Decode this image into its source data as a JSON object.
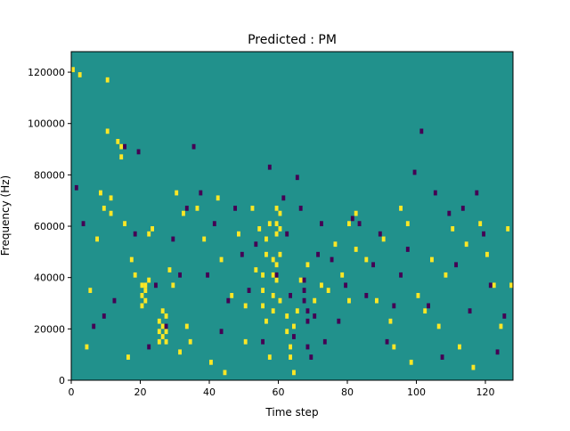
{
  "chart_data": {
    "type": "heatmap",
    "title": "Predicted : PM",
    "xlabel": "Time step",
    "ylabel": "Frequency (Hz)",
    "xlim": [
      0,
      128
    ],
    "ylim": [
      0,
      128000
    ],
    "x_ticks": [
      0,
      20,
      40,
      60,
      80,
      100,
      120
    ],
    "x_tick_labels": [
      "0",
      "20",
      "40",
      "60",
      "80",
      "100",
      "120"
    ],
    "y_ticks": [
      0,
      20000,
      40000,
      60000,
      80000,
      100000,
      120000
    ],
    "y_tick_labels": [
      "0",
      "20000",
      "40000",
      "60000",
      "80000",
      "100000",
      "120000"
    ],
    "grid": false,
    "background_value": 0,
    "colormap": {
      "-1": "#440154",
      "0": "#21918c",
      "1": "#fde725"
    },
    "cells_step_hz": 2000,
    "cells_high": [
      [
        0,
        120000
      ],
      [
        2,
        118000
      ],
      [
        4,
        12000
      ],
      [
        5,
        34000
      ],
      [
        7,
        54000
      ],
      [
        8,
        72000
      ],
      [
        9,
        66000
      ],
      [
        10,
        96000
      ],
      [
        10,
        116000
      ],
      [
        11,
        64000
      ],
      [
        11,
        70000
      ],
      [
        13,
        92000
      ],
      [
        14,
        86000
      ],
      [
        14,
        90000
      ],
      [
        15,
        60000
      ],
      [
        16,
        8000
      ],
      [
        17,
        46000
      ],
      [
        18,
        40000
      ],
      [
        20,
        36000
      ],
      [
        20,
        32000
      ],
      [
        20,
        28000
      ],
      [
        21,
        36000
      ],
      [
        21,
        34000
      ],
      [
        21,
        30000
      ],
      [
        22,
        56000
      ],
      [
        22,
        38000
      ],
      [
        23,
        58000
      ],
      [
        25,
        22000
      ],
      [
        25,
        18000
      ],
      [
        25,
        14000
      ],
      [
        26,
        26000
      ],
      [
        26,
        20000
      ],
      [
        26,
        16000
      ],
      [
        27,
        24000
      ],
      [
        27,
        18000
      ],
      [
        27,
        14000
      ],
      [
        28,
        42000
      ],
      [
        29,
        36000
      ],
      [
        30,
        72000
      ],
      [
        31,
        10000
      ],
      [
        32,
        64000
      ],
      [
        33,
        20000
      ],
      [
        34,
        14000
      ],
      [
        36,
        66000
      ],
      [
        38,
        54000
      ],
      [
        40,
        6000
      ],
      [
        42,
        70000
      ],
      [
        43,
        46000
      ],
      [
        44,
        2000
      ],
      [
        46,
        32000
      ],
      [
        48,
        56000
      ],
      [
        50,
        28000
      ],
      [
        50,
        14000
      ],
      [
        52,
        66000
      ],
      [
        53,
        42000
      ],
      [
        54,
        58000
      ],
      [
        55,
        40000
      ],
      [
        55,
        34000
      ],
      [
        55,
        28000
      ],
      [
        56,
        54000
      ],
      [
        56,
        48000
      ],
      [
        56,
        22000
      ],
      [
        57,
        60000
      ],
      [
        57,
        8000
      ],
      [
        58,
        46000
      ],
      [
        58,
        40000
      ],
      [
        58,
        32000
      ],
      [
        58,
        26000
      ],
      [
        59,
        66000
      ],
      [
        59,
        60000
      ],
      [
        59,
        56000
      ],
      [
        59,
        44000
      ],
      [
        59,
        38000
      ],
      [
        60,
        64000
      ],
      [
        60,
        58000
      ],
      [
        60,
        48000
      ],
      [
        60,
        30000
      ],
      [
        62,
        18000
      ],
      [
        62,
        24000
      ],
      [
        63,
        12000
      ],
      [
        63,
        8000
      ],
      [
        64,
        20000
      ],
      [
        64,
        2000
      ],
      [
        65,
        26000
      ],
      [
        66,
        38000
      ],
      [
        68,
        44000
      ],
      [
        70,
        30000
      ],
      [
        72,
        36000
      ],
      [
        74,
        34000
      ],
      [
        76,
        52000
      ],
      [
        78,
        40000
      ],
      [
        80,
        60000
      ],
      [
        80,
        30000
      ],
      [
        82,
        50000
      ],
      [
        82,
        64000
      ],
      [
        85,
        46000
      ],
      [
        88,
        30000
      ],
      [
        90,
        54000
      ],
      [
        92,
        22000
      ],
      [
        93,
        12000
      ],
      [
        95,
        66000
      ],
      [
        97,
        60000
      ],
      [
        98,
        6000
      ],
      [
        100,
        32000
      ],
      [
        102,
        26000
      ],
      [
        104,
        46000
      ],
      [
        106,
        20000
      ],
      [
        108,
        40000
      ],
      [
        110,
        58000
      ],
      [
        112,
        12000
      ],
      [
        114,
        52000
      ],
      [
        116,
        4000
      ],
      [
        118,
        60000
      ],
      [
        120,
        48000
      ],
      [
        122,
        36000
      ],
      [
        124,
        20000
      ],
      [
        126,
        58000
      ],
      [
        127,
        36000
      ]
    ],
    "cells_low": [
      [
        1,
        74000
      ],
      [
        3,
        60000
      ],
      [
        6,
        20000
      ],
      [
        9,
        24000
      ],
      [
        12,
        30000
      ],
      [
        15,
        90000
      ],
      [
        18,
        56000
      ],
      [
        19,
        88000
      ],
      [
        22,
        12000
      ],
      [
        24,
        36000
      ],
      [
        27,
        20000
      ],
      [
        29,
        54000
      ],
      [
        31,
        40000
      ],
      [
        33,
        66000
      ],
      [
        35,
        90000
      ],
      [
        37,
        72000
      ],
      [
        39,
        40000
      ],
      [
        41,
        60000
      ],
      [
        43,
        18000
      ],
      [
        45,
        30000
      ],
      [
        47,
        66000
      ],
      [
        49,
        48000
      ],
      [
        51,
        34000
      ],
      [
        53,
        52000
      ],
      [
        55,
        14000
      ],
      [
        57,
        82000
      ],
      [
        59,
        40000
      ],
      [
        61,
        70000
      ],
      [
        62,
        56000
      ],
      [
        63,
        32000
      ],
      [
        64,
        16000
      ],
      [
        65,
        78000
      ],
      [
        66,
        66000
      ],
      [
        67,
        38000
      ],
      [
        67,
        34000
      ],
      [
        67,
        30000
      ],
      [
        68,
        26000
      ],
      [
        68,
        22000
      ],
      [
        68,
        12000
      ],
      [
        69,
        8000
      ],
      [
        70,
        24000
      ],
      [
        71,
        48000
      ],
      [
        72,
        60000
      ],
      [
        73,
        14000
      ],
      [
        75,
        46000
      ],
      [
        77,
        22000
      ],
      [
        79,
        36000
      ],
      [
        81,
        62000
      ],
      [
        83,
        60000
      ],
      [
        85,
        32000
      ],
      [
        87,
        44000
      ],
      [
        89,
        56000
      ],
      [
        91,
        14000
      ],
      [
        93,
        28000
      ],
      [
        95,
        40000
      ],
      [
        97,
        50000
      ],
      [
        99,
        80000
      ],
      [
        101,
        96000
      ],
      [
        103,
        28000
      ],
      [
        105,
        72000
      ],
      [
        107,
        8000
      ],
      [
        109,
        64000
      ],
      [
        111,
        44000
      ],
      [
        113,
        66000
      ],
      [
        115,
        26000
      ],
      [
        117,
        72000
      ],
      [
        119,
        56000
      ],
      [
        121,
        36000
      ],
      [
        123,
        10000
      ],
      [
        125,
        24000
      ]
    ]
  }
}
